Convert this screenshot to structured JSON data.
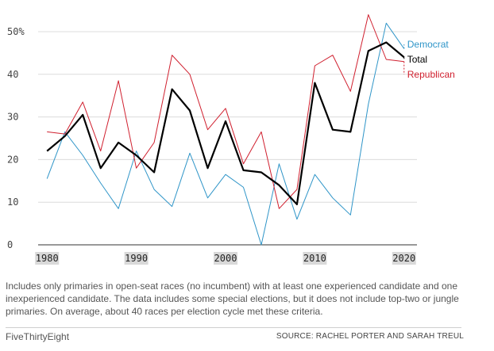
{
  "chart_data": {
    "type": "line",
    "x": [
      1980,
      1982,
      1984,
      1986,
      1988,
      1990,
      1992,
      1994,
      1996,
      1998,
      2000,
      2002,
      2004,
      2006,
      2008,
      2010,
      2012,
      2014,
      2016,
      2018,
      2020
    ],
    "series": [
      {
        "name": "Democrat",
        "color": "#2f95c8",
        "values": [
          15.5,
          26.5,
          21,
          14.5,
          8.5,
          22,
          13,
          9,
          21.5,
          11,
          16.5,
          13.5,
          0,
          19,
          6,
          16.5,
          11,
          7,
          33,
          52,
          46
        ]
      },
      {
        "name": "Total",
        "color": "#000000",
        "values": [
          22,
          25.5,
          30.5,
          18,
          24,
          21,
          17,
          36.5,
          31.5,
          18,
          29,
          17.5,
          17,
          14,
          9.5,
          38,
          27,
          26.5,
          45.5,
          47.5,
          44
        ]
      },
      {
        "name": "Republican",
        "color": "#d0202f",
        "values": [
          26.5,
          26,
          33.5,
          22,
          38.5,
          18,
          24,
          44.5,
          40,
          27,
          32,
          19,
          26.5,
          8.5,
          13,
          42,
          44.5,
          36,
          54,
          43.5,
          43
        ]
      }
    ],
    "y_ticks": [
      "0",
      "10",
      "20",
      "30",
      "40",
      "50%"
    ],
    "x_ticks": [
      "1980",
      "1990",
      "2000",
      "2010",
      "2020"
    ],
    "x_tick_values": [
      1980,
      1990,
      2000,
      2010,
      2020
    ],
    "y_tick_values": [
      0,
      10,
      20,
      30,
      40,
      50
    ],
    "xlim": [
      1979,
      2021
    ],
    "ylim": [
      0,
      50
    ],
    "grid": true,
    "legend": "direct-labels-right"
  },
  "note": "Includes only primaries in open-seat races (no incumbent) with at least one experienced candidate and one inexperienced candidate. The data includes some special elections, but it does not include top-two or jungle primaries. On average, about 40 races per election cycle met these criteria.",
  "brand": "FiveThirtyEight",
  "source": "SOURCE: RACHEL PORTER AND SARAH TREUL"
}
